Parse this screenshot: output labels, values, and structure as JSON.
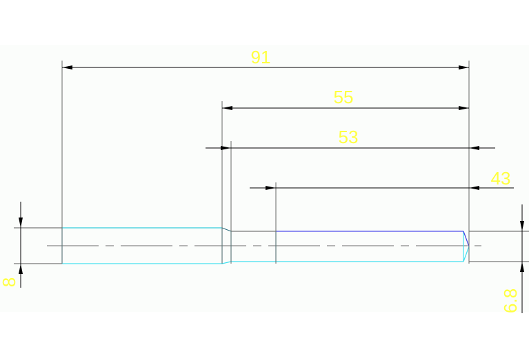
{
  "drawing": {
    "background": "#fbfdfb",
    "colors": {
      "dimension": "#000000",
      "dim_text": "#ffff40",
      "outline": "#40e0f0",
      "blue_edge": "#5050ff",
      "centerline": "#808080"
    },
    "dimensions": {
      "overall_length": "91",
      "shoulder_length": "55",
      "step_length": "53",
      "thread_length": "43",
      "large_diameter": "8",
      "small_diameter": "6.8"
    }
  }
}
